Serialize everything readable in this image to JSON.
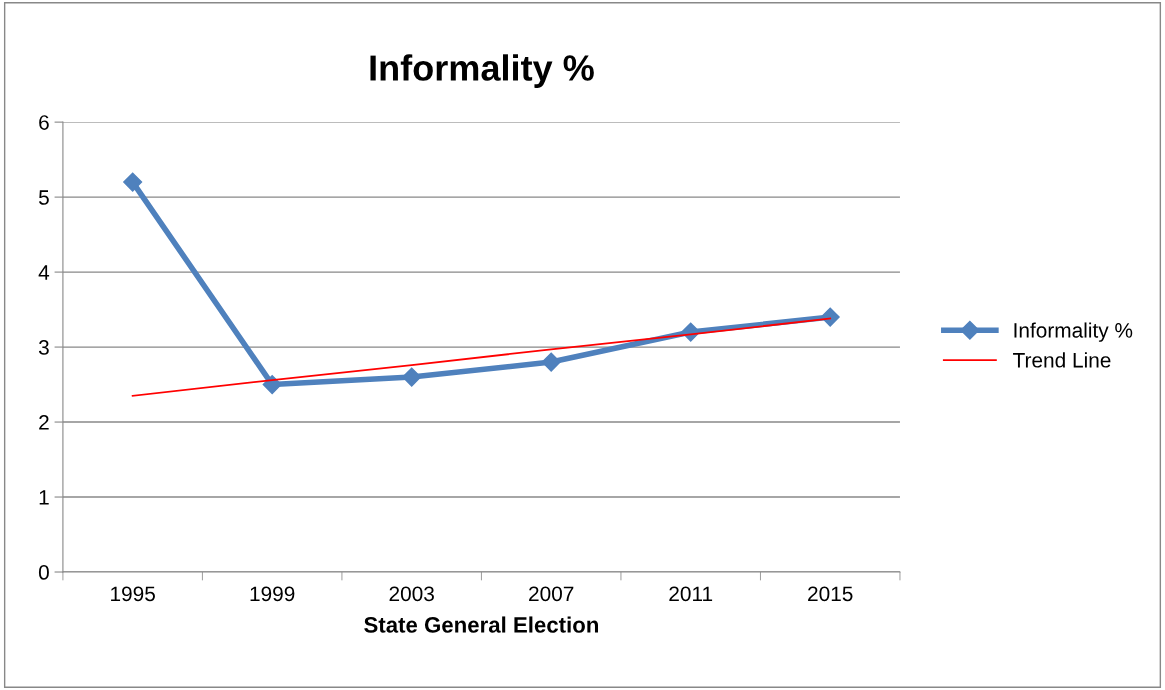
{
  "chart_data": {
    "type": "line",
    "title": "Informality %",
    "xlabel": "State General Election",
    "categories": [
      "1995",
      "1999",
      "2003",
      "2007",
      "2011",
      "2015"
    ],
    "series": [
      {
        "name": "Informality %",
        "color": "#4f81bd",
        "values": [
          5.2,
          2.5,
          2.6,
          2.8,
          3.2,
          3.4
        ],
        "marker": "diamond"
      },
      {
        "name": "Trend Line",
        "color": "#ff0000",
        "type": "line",
        "values": [
          2.35,
          2.56,
          2.76,
          2.97,
          3.17,
          3.38
        ],
        "marker": "none"
      }
    ],
    "ylim": [
      0,
      6
    ],
    "yticks": [
      0,
      1,
      2,
      3,
      4,
      5,
      6
    ],
    "grid": "y",
    "legend": "right"
  }
}
